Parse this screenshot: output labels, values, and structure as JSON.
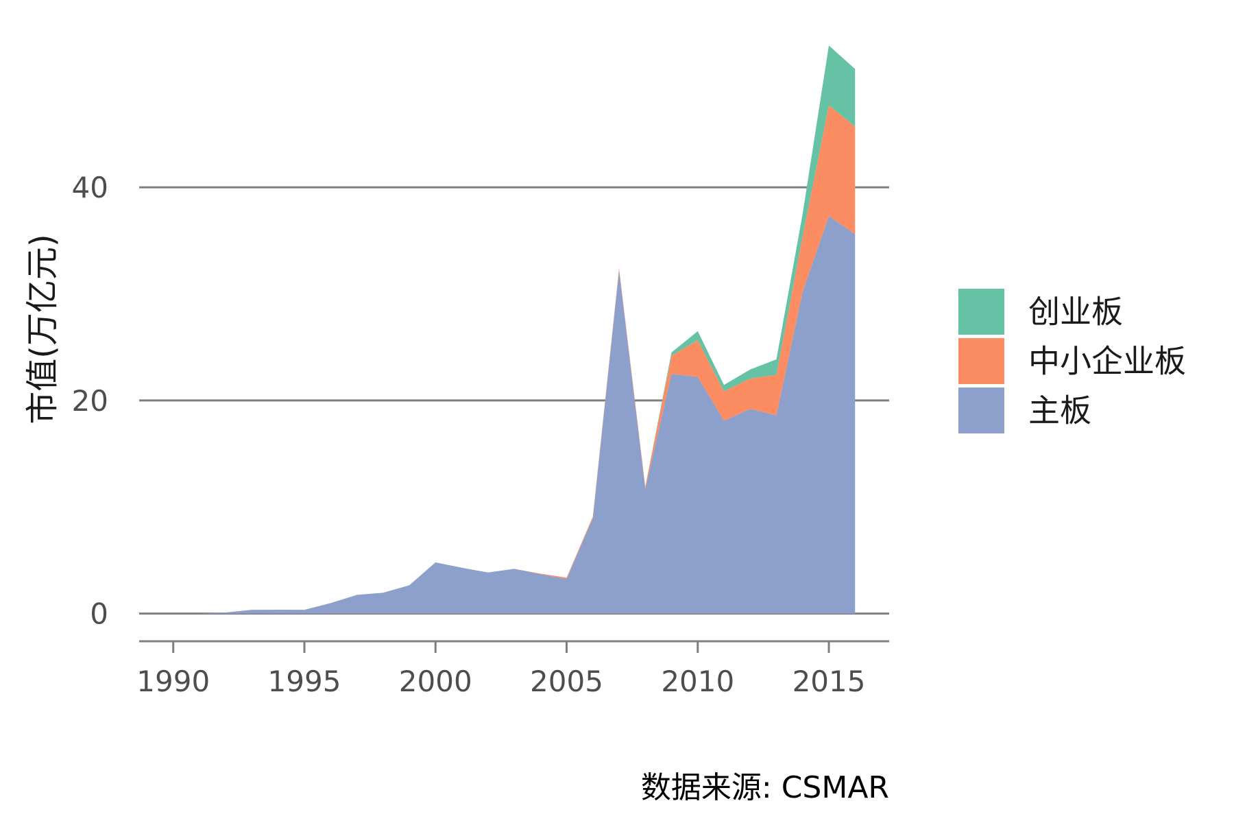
{
  "chart_data": {
    "type": "area",
    "stacked": true,
    "ylabel": "市值(万亿元)",
    "xlabel": "",
    "caption": "数据来源: CSMAR",
    "x_ticks": [
      "1990",
      "1995",
      "2000",
      "2005",
      "2010",
      "2015"
    ],
    "y_ticks": [
      "0",
      "20",
      "40"
    ],
    "xlim": [
      1988.7,
      2017.3
    ],
    "ylim": [
      -2.6,
      55
    ],
    "grid": "horizontal major lines",
    "legend_position": "right",
    "x": [
      1990,
      1991,
      1992,
      1993,
      1994,
      1995,
      1996,
      1997,
      1998,
      1999,
      2000,
      2001,
      2002,
      2003,
      2004,
      2005,
      2006,
      2007,
      2008,
      2009,
      2010,
      2011,
      2012,
      2013,
      2014,
      2015,
      2016
    ],
    "series": [
      {
        "name": "主板",
        "color": "#8DA0CB",
        "values": [
          0.0,
          0.0,
          0.1,
          0.35,
          0.36,
          0.35,
          0.98,
          1.75,
          1.95,
          2.65,
          4.8,
          4.3,
          3.85,
          4.2,
          3.7,
          3.25,
          8.95,
          32.2,
          11.7,
          22.5,
          22.2,
          18.1,
          19.2,
          18.6,
          30.2,
          37.3,
          35.6
        ]
      },
      {
        "name": "中小企业板",
        "color": "#FC8D62",
        "values": [
          0,
          0,
          0,
          0,
          0,
          0,
          0,
          0,
          0,
          0,
          0,
          0,
          0,
          0,
          0.05,
          0.12,
          0.15,
          0.2,
          0.2,
          1.7,
          3.45,
          2.75,
          2.85,
          3.8,
          5.2,
          10.4,
          10.1
        ]
      },
      {
        "name": "创业板",
        "color": "#66C2A5",
        "values": [
          0,
          0,
          0,
          0,
          0,
          0,
          0,
          0,
          0,
          0,
          0,
          0,
          0,
          0,
          0,
          0,
          0,
          0,
          0,
          0.3,
          0.85,
          0.6,
          0.85,
          1.45,
          2.1,
          5.6,
          5.4
        ]
      }
    ],
    "legend_order": [
      "创业板",
      "中小企业板",
      "主板"
    ]
  }
}
